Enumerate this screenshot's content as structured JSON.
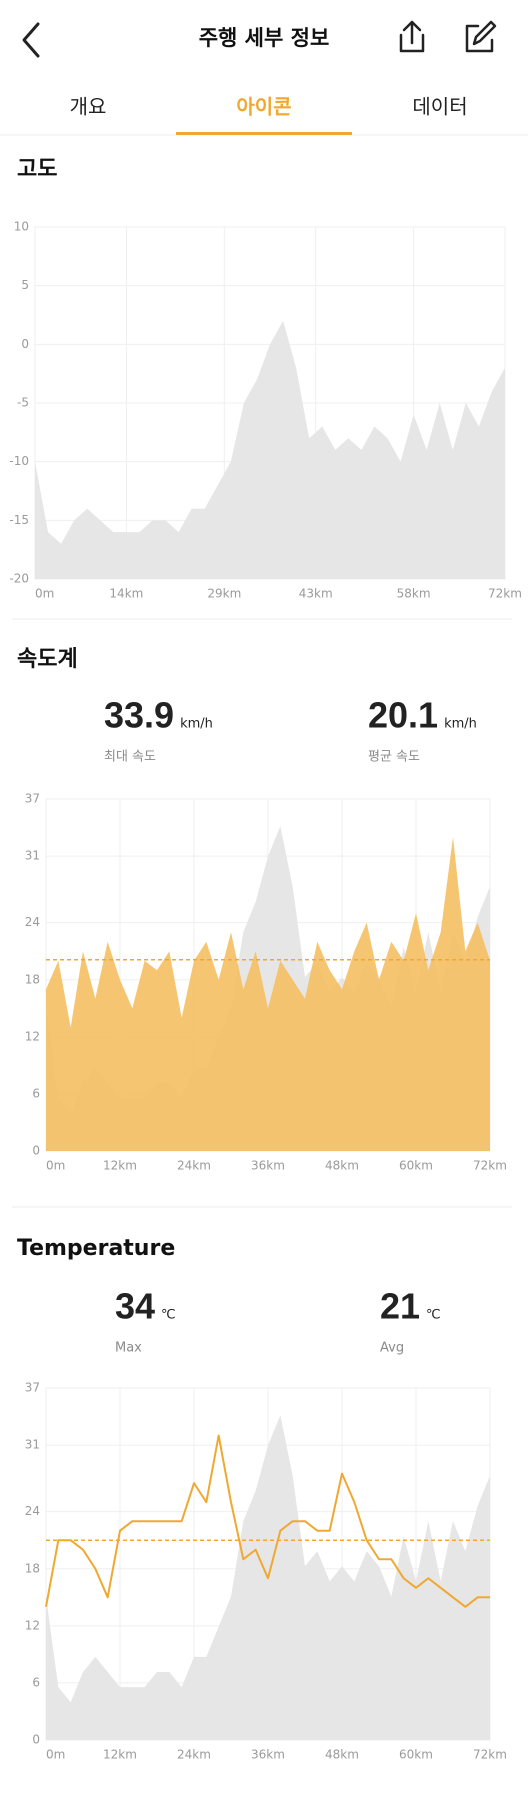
{
  "header": {
    "title": "주행 세부 정보"
  },
  "tabs": [
    "개요",
    "아이콘",
    "데이터"
  ],
  "active_tab": 1,
  "chart_data": [
    {
      "type": "area",
      "title": "고도",
      "x": [
        0,
        2,
        4,
        6,
        8,
        10,
        12,
        14,
        16,
        18,
        20,
        22,
        24,
        26,
        28,
        30,
        32,
        34,
        36,
        38,
        40,
        42,
        44,
        46,
        48,
        50,
        52,
        54,
        56,
        58,
        60,
        62,
        64,
        66,
        68,
        70,
        72
      ],
      "values": [
        -10,
        -16,
        -17,
        -15,
        -14,
        -15,
        -16,
        -16,
        -16,
        -15,
        -15,
        -16,
        -14,
        -14,
        -12,
        -10,
        -5,
        -3,
        0,
        2,
        -2,
        -8,
        -7,
        -9,
        -8,
        -9,
        -7,
        -8,
        -10,
        -6,
        -9,
        -5,
        -9,
        -5,
        -7,
        -4,
        -2
      ],
      "color": "#e6e6e6",
      "xlim": [
        0,
        72
      ],
      "xticks": [
        {
          "value": 0,
          "label": "0m"
        },
        {
          "value": 14,
          "label": "14km"
        },
        {
          "value": 29,
          "label": "29km"
        },
        {
          "value": 43,
          "label": "43km"
        },
        {
          "value": 58,
          "label": "58km"
        },
        {
          "value": 72,
          "label": "72km"
        }
      ],
      "ylim": [
        -20,
        10
      ],
      "yticks": [
        10,
        5,
        0,
        -5,
        -10,
        -15,
        -20
      ],
      "grid": true
    },
    {
      "type": "area",
      "title": "속도계",
      "stats": [
        {
          "value": 33.9,
          "unit": "km/h",
          "label": "최대 속도"
        },
        {
          "value": 20.1,
          "unit": "km/h",
          "label": "평균 속도"
        }
      ],
      "x": [
        0,
        2,
        4,
        6,
        8,
        10,
        12,
        14,
        16,
        18,
        20,
        22,
        24,
        26,
        28,
        30,
        32,
        34,
        36,
        38,
        40,
        42,
        44,
        46,
        48,
        50,
        52,
        54,
        56,
        58,
        60,
        62,
        64,
        66,
        68,
        70,
        72
      ],
      "series": [
        {
          "color": "#f5bf62",
          "values": [
            17,
            20,
            13,
            21,
            16,
            22,
            18,
            15,
            20,
            19,
            21,
            14,
            20,
            22,
            18,
            23,
            17,
            21,
            15,
            20,
            18,
            16,
            22,
            19,
            17,
            21,
            24,
            18,
            22,
            20,
            25,
            19,
            23,
            33,
            21,
            24,
            20
          ]
        }
      ],
      "background_color": "#e6e6e6",
      "y2lim": [
        -19.5,
        3.8
      ],
      "average_color": "#f0a830",
      "xlim": [
        0,
        72
      ],
      "xticks": [
        {
          "value": 0,
          "label": "0m"
        },
        {
          "value": 12,
          "label": "12km"
        },
        {
          "value": 24,
          "label": "24km"
        },
        {
          "value": 36,
          "label": "36km"
        },
        {
          "value": 48,
          "label": "48km"
        },
        {
          "value": 60,
          "label": "60km"
        },
        {
          "value": 72,
          "label": "72km"
        }
      ],
      "ylim": [
        0,
        37
      ],
      "yticks": [
        37,
        31,
        24,
        18,
        12,
        6,
        0
      ],
      "grid": true
    },
    {
      "type": "line",
      "title": "Temperature",
      "stats": [
        {
          "value": 34,
          "unit": "℃",
          "label": "Max"
        },
        {
          "value": 21,
          "unit": "℃",
          "label": "Avg"
        }
      ],
      "x": [
        0,
        2,
        4,
        6,
        8,
        10,
        12,
        14,
        16,
        18,
        20,
        22,
        24,
        26,
        28,
        30,
        32,
        34,
        36,
        38,
        40,
        42,
        44,
        46,
        48,
        50,
        52,
        54,
        56,
        58,
        60,
        62,
        64,
        66,
        68,
        70,
        72
      ],
      "series": [
        {
          "color": "#f0a830",
          "values": [
            14,
            21,
            21,
            20,
            18,
            15,
            22,
            23,
            23,
            23,
            23,
            23,
            27,
            25,
            32,
            25,
            19,
            20,
            17,
            22,
            23,
            23,
            22,
            22,
            28,
            25,
            21,
            19,
            19,
            17,
            16,
            17,
            16,
            15,
            14,
            15,
            15
          ]
        }
      ],
      "background_color": "#e6e6e6",
      "y2lim": [
        -19.5,
        3.8
      ],
      "average_color": "#f0a830",
      "xlim": [
        0,
        72
      ],
      "xticks": [
        {
          "value": 0,
          "label": "0m"
        },
        {
          "value": 12,
          "label": "12km"
        },
        {
          "value": 24,
          "label": "24km"
        },
        {
          "value": 36,
          "label": "36km"
        },
        {
          "value": 48,
          "label": "48km"
        },
        {
          "value": 60,
          "label": "60km"
        },
        {
          "value": 72,
          "label": "72km"
        }
      ],
      "ylim": [
        0,
        37
      ],
      "yticks": [
        37,
        31,
        24,
        18,
        12,
        6,
        0
      ],
      "grid": true
    }
  ]
}
